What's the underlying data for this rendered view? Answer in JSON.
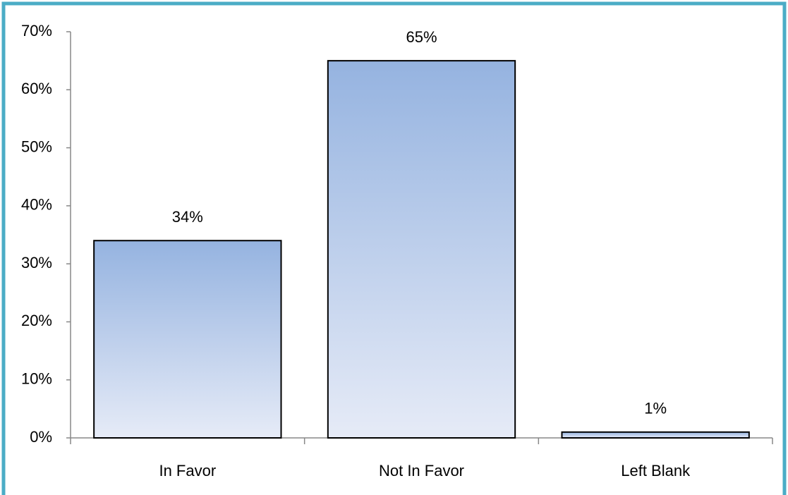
{
  "chart_data": {
    "type": "bar",
    "categories": [
      "In Favor",
      "Not In Favor",
      "Left Blank"
    ],
    "values": [
      34,
      65,
      1
    ],
    "value_labels": [
      "34%",
      "65%",
      "1%"
    ],
    "color": "#95b3e0",
    "ylim": [
      0,
      70
    ],
    "yticks": [
      {
        "value": 0,
        "label": "0%"
      },
      {
        "value": 10,
        "label": "10%"
      },
      {
        "value": 20,
        "label": "20%"
      },
      {
        "value": 30,
        "label": "30%"
      },
      {
        "value": 40,
        "label": "40%"
      },
      {
        "value": 50,
        "label": "50%"
      },
      {
        "value": 60,
        "label": "60%"
      },
      {
        "value": 70,
        "label": "70%"
      }
    ],
    "grid": false
  }
}
